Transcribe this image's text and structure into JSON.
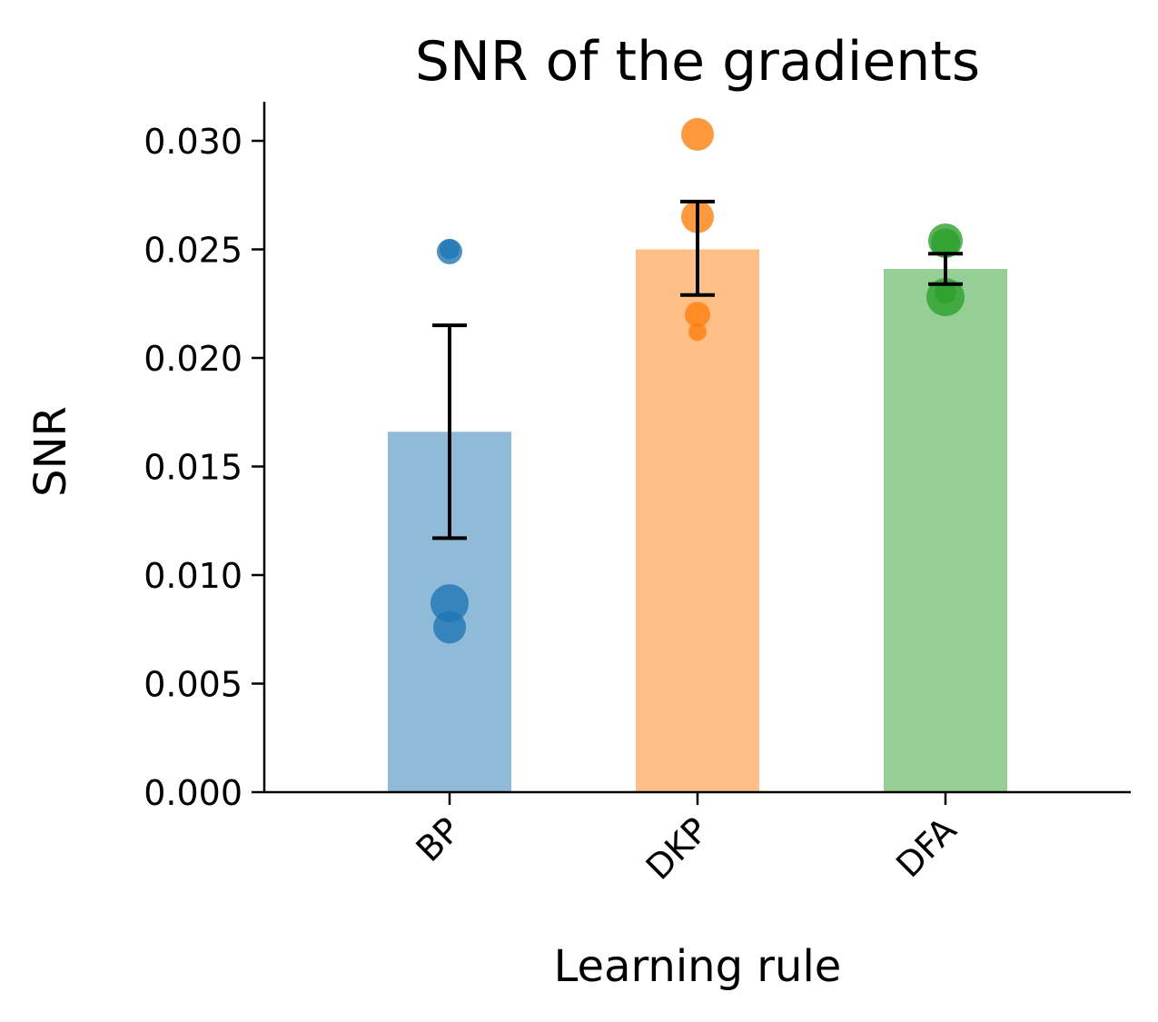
{
  "chart_data": {
    "type": "bar",
    "title": "SNR of the gradients",
    "xlabel": "Learning rule",
    "ylabel": "SNR",
    "categories": [
      "BP",
      "DKP",
      "DFA"
    ],
    "values": [
      0.0166,
      0.025,
      0.0241
    ],
    "error_low": [
      0.0117,
      0.0229,
      0.0234
    ],
    "error_high": [
      0.0215,
      0.0272,
      0.0248
    ],
    "points": [
      [
        0.025,
        0.0249,
        0.0087,
        0.0076
      ],
      [
        0.0303,
        0.0265,
        0.022,
        0.0212
      ],
      [
        0.0254,
        0.0253,
        0.023,
        0.0228
      ]
    ],
    "colors": [
      "#1f77b4",
      "#ff7f0e",
      "#2ca02c"
    ],
    "ylim": [
      0,
      0.0318
    ],
    "yticks": [
      "0.000",
      "0.005",
      "0.010",
      "0.015",
      "0.020",
      "0.025",
      "0.030"
    ],
    "ytick_values": [
      0,
      0.005,
      0.01,
      0.015,
      0.02,
      0.025,
      0.03
    ],
    "grid": false,
    "legend": "none"
  }
}
